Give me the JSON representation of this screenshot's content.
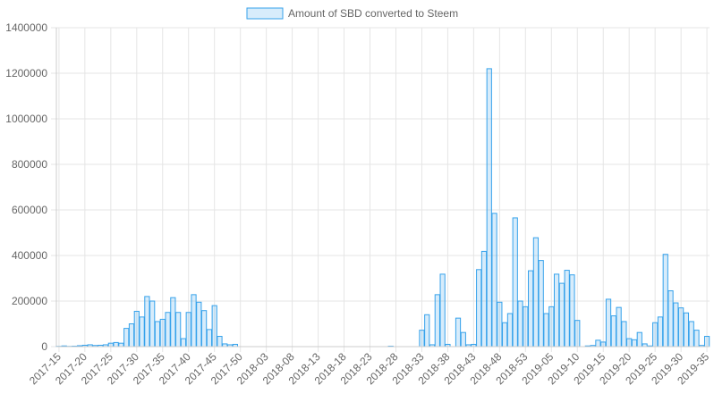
{
  "chart_data": {
    "type": "bar",
    "series": [
      {
        "name": "Amount of SBD converted to Steem",
        "color": "#36a2eb",
        "fill": "rgba(54,162,235,0.2)",
        "values": [
          1000,
          3000,
          1000,
          2000,
          4000,
          6000,
          8000,
          5000,
          6000,
          8000,
          15000,
          18000,
          15000,
          80000,
          100000,
          155000,
          130000,
          220000,
          200000,
          110000,
          120000,
          150000,
          215000,
          150000,
          35000,
          150000,
          228000,
          195000,
          158000,
          75000,
          180000,
          45000,
          12000,
          8000,
          10000,
          0,
          0,
          0,
          0,
          0,
          0,
          0,
          0,
          0,
          0,
          0,
          0,
          0,
          0,
          0,
          0,
          0,
          0,
          0,
          0,
          0,
          0,
          0,
          0,
          0,
          0,
          0,
          0,
          0,
          2000,
          0,
          0,
          0,
          0,
          0,
          72000,
          140000,
          8000,
          228000,
          318000,
          10000,
          0,
          125000,
          62000,
          8000,
          10000,
          338000,
          418000,
          1220000,
          585000,
          195000,
          105000,
          145000,
          565000,
          200000,
          175000,
          333000,
          478000,
          378000,
          145000,
          175000,
          318000,
          278000,
          335000,
          315000,
          115000,
          0,
          3000,
          5000,
          28000,
          20000,
          208000,
          135000,
          172000,
          110000,
          35000,
          30000,
          62000,
          12000,
          3000,
          105000,
          130000,
          405000,
          245000,
          192000,
          170000,
          148000,
          110000,
          72000,
          5000,
          45000
        ]
      }
    ],
    "categories": [
      "2017-15",
      null,
      null,
      null,
      null,
      "2017-20",
      null,
      null,
      null,
      null,
      "2017-25",
      null,
      null,
      null,
      null,
      "2017-30",
      null,
      null,
      null,
      null,
      "2017-35",
      null,
      null,
      null,
      null,
      "2017-40",
      null,
      null,
      null,
      null,
      "2017-45",
      null,
      null,
      null,
      null,
      "2017-50",
      null,
      null,
      null,
      null,
      "2018-03",
      null,
      null,
      null,
      null,
      "2018-08",
      null,
      null,
      null,
      null,
      "2018-13",
      null,
      null,
      null,
      null,
      "2018-18",
      null,
      null,
      null,
      null,
      "2018-23",
      null,
      null,
      null,
      null,
      "2018-28",
      null,
      null,
      null,
      null,
      "2018-33",
      null,
      null,
      null,
      null,
      "2018-38",
      null,
      null,
      null,
      null,
      "2018-43",
      null,
      null,
      null,
      null,
      "2018-48",
      null,
      null,
      null,
      null,
      "2018-53",
      null,
      null,
      null,
      null,
      "2019-05",
      null,
      null,
      null,
      null,
      "2019-10",
      null,
      null,
      null,
      null,
      "2019-15",
      null,
      null,
      null,
      null,
      "2019-20",
      null,
      null,
      null,
      null,
      "2019-25",
      null,
      null,
      null,
      null,
      "2019-30",
      null,
      null,
      null,
      null,
      "2019-35"
    ],
    "ylim": [
      0,
      1400000
    ],
    "yticks": [
      0,
      200000,
      400000,
      600000,
      800000,
      1000000,
      1200000,
      1400000
    ],
    "grid": true,
    "legend": "top"
  }
}
